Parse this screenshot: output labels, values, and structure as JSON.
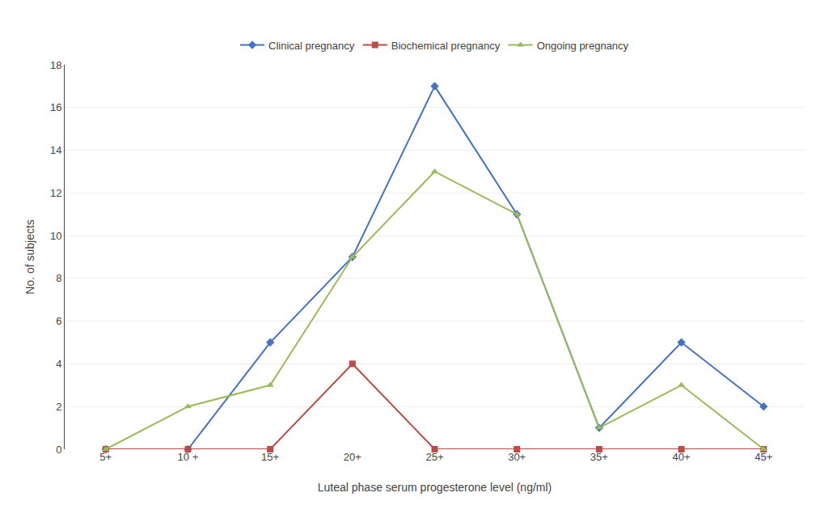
{
  "chart_data": {
    "type": "line",
    "categories": [
      "5+",
      "10 +",
      "15+",
      "20+",
      "25+",
      "30+",
      "35+",
      "40+",
      "45+"
    ],
    "series": [
      {
        "name": "Clinical pregnancy",
        "color": "#4472C4",
        "marker": "diamond",
        "values": [
          0,
          0,
          5,
          9,
          17,
          11,
          1,
          5,
          2
        ]
      },
      {
        "name": "Biochemical pregnancy",
        "color": "#BE4B48",
        "marker": "square",
        "values": [
          0,
          0,
          0,
          4,
          0,
          0,
          0,
          0,
          0
        ]
      },
      {
        "name": "Ongoing pregnancy",
        "color": "#9BBB59",
        "marker": "triangle-up",
        "values": [
          0,
          2,
          3,
          9,
          13,
          11,
          1,
          3,
          0
        ]
      }
    ],
    "x_label": "Luteal phase serum progesterone level (ng/ml)",
    "y_label": "No. of subjects",
    "ylim": [
      0,
      18
    ],
    "yticks": [
      0,
      2,
      4,
      6,
      8,
      10,
      12,
      14,
      16,
      18
    ],
    "grid": true,
    "legend": "top"
  }
}
